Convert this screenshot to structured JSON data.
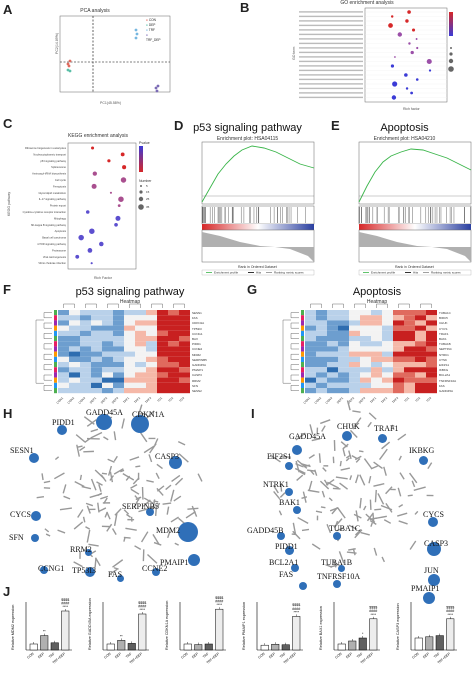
{
  "panels": {
    "A": {
      "label": "A",
      "title": "PCA analysis",
      "xlabel": "PC1(45.58%)",
      "ylabel": "PC2(14.89%)",
      "legend": [
        "CON",
        "DEP",
        "TRF",
        "TRF_DEP"
      ],
      "legend_colors": [
        "#e06a5e",
        "#5bbfa8",
        "#76b7e0",
        "#7b6bb5"
      ]
    },
    "B": {
      "label": "B",
      "title": "GO enrichment analysis",
      "xlabel": "Rich factor",
      "ylabel": "GO term"
    },
    "C": {
      "label": "C",
      "title": "KEGG enrichment analysis",
      "xlabel": "Rich Factor",
      "ylabel": "KEGG pathway",
      "pathways": [
        "Ribosome biogenesis in eukaryotes",
        "Nucleocytoplasmic transport",
        "p53 signaling pathway",
        "Spliceosome",
        "Aminoacyl-tRNA biosynthesis",
        "Cell cycle",
        "Ferroptosis",
        "Glycerolipid metabolism",
        "IL-17 signaling pathway",
        "Protein export",
        "Cytokine-cytokine receptor interaction",
        "Mitophagy",
        "NF-kappa B signaling pathway",
        "Apoptosis",
        "Basal cell carcinoma",
        "mTOR signaling pathway",
        "Proteasome",
        "Viral carcinogenesis",
        "Vibrio cholerae infection"
      ],
      "legend_pvalue": "Pvalue",
      "legend_number": "Number",
      "number_ticks": [
        "5",
        "15",
        "25",
        "35"
      ]
    },
    "D": {
      "label": "D",
      "big_title": "p53 signaling pathway",
      "plot_title": "Enrichment plot: HSA04115",
      "xlabel": "Rank in Ordered Dataset",
      "legend": [
        "Enrichment profile",
        "Hits",
        "Ranking metric scores"
      ]
    },
    "E": {
      "label": "E",
      "big_title": "Apoptosis",
      "plot_title": "Enrichment plot: HSA04210",
      "xlabel": "Rank in Ordered Dataset",
      "legend": [
        "Enrichment profile",
        "Hits",
        "Ranking metric scores"
      ]
    },
    "F": {
      "label": "F",
      "big_title": "p53 signaling pathway",
      "sub": "Heatmap",
      "genes": [
        "SESN1",
        "FAS",
        "CDKN1A",
        "TP53I3",
        "CCNG1",
        "BAX",
        "PIDD1",
        "CCNE2",
        "MDM2",
        "SERPINB5",
        "GADD45A",
        "PMAIP1",
        "CASP3",
        "RRM2",
        "SFN",
        "SESN2"
      ],
      "samples": [
        "CON1",
        "CON2",
        "CON3",
        "DEP1",
        "DEP2",
        "DEP3",
        "TRF1",
        "TRF2",
        "TRF3",
        "TD1",
        "TD2",
        "TD3"
      ]
    },
    "G": {
      "label": "G",
      "big_title": "Apoptosis",
      "sub": "Heatmap",
      "genes": [
        "TUBA1C",
        "BIRC5",
        "CHUK",
        "CYCS",
        "TRAF1",
        "BAK1",
        "TUBA1B",
        "SEPTIN4",
        "NTRK1",
        "CTSK",
        "EIF2S1",
        "IKBKG",
        "BCL2A1",
        "TNFRSF10A",
        "FAS",
        "GADD45A"
      ],
      "samples": [
        "CON1",
        "CON2",
        "CON3",
        "DEP1",
        "DEP2",
        "DEP3",
        "TRF1",
        "TRF2",
        "TRF3",
        "TD1",
        "TD2",
        "TD3"
      ]
    },
    "H": {
      "label": "H",
      "genes": [
        "PIDD1",
        "GADD45A",
        "CDKN1A",
        "SESN1",
        "CASP3",
        "CYCS",
        "SERPINB5",
        "MDM2",
        "SFN",
        "RRM2",
        "PMAIP1",
        "CCNG1",
        "TP53I3",
        "FAS",
        "CCNE2"
      ]
    },
    "I": {
      "label": "I",
      "genes": [
        "GADD45A",
        "CHUK",
        "TRAF1",
        "IKBKG",
        "EIF2S1",
        "NTRK1",
        "CYCS",
        "BAK1",
        "GADD45B",
        "CASP3",
        "TUBA1C",
        "PIDD1",
        "JUN",
        "BCL2A1",
        "TUBA1B",
        "FAS",
        "TNFRSF10A",
        "PMAIP1"
      ]
    },
    "J": {
      "label": "J",
      "charts": [
        {
          "ylabel": "Relative MDM2 expression",
          "values": [
            1,
            2.4,
            1.2,
            6.5
          ],
          "ymax": 8,
          "stars": [
            "",
            "**",
            "",
            "$$$$\n####\n****"
          ]
        },
        {
          "ylabel": "Relative GADD45A expression",
          "values": [
            1,
            1.6,
            1.1,
            6.0
          ],
          "ymax": 8,
          "stars": [
            "",
            "**",
            "",
            "$$$$\n####\n****"
          ]
        },
        {
          "ylabel": "Relative CDKN1A expression",
          "values": [
            1,
            0.9,
            1.0,
            6.8
          ],
          "ymax": 8,
          "stars": [
            "",
            "",
            "",
            "$$$$\n####\n****"
          ]
        },
        {
          "ylabel": "Relative PMAIP1 expression",
          "values": [
            1,
            1.2,
            1.1,
            7.0
          ],
          "ymax": 10,
          "stars": [
            "",
            "",
            "",
            "$$$$\n####\n****"
          ]
        },
        {
          "ylabel": "Relative BAX1 expression",
          "values": [
            1,
            1.5,
            2.0,
            5.2
          ],
          "ymax": 8,
          "stars": [
            "",
            "",
            "*",
            "$$$$\n####\n****"
          ]
        },
        {
          "ylabel": "Relative CASP3 expression",
          "values": [
            1,
            1.1,
            1.2,
            2.6
          ],
          "ymax": 4,
          "stars": [
            "",
            "",
            "",
            "$$$$\n####\n****"
          ]
        }
      ],
      "categories": [
        "CON",
        "DEP",
        "TRF",
        "TRF+DEP"
      ]
    }
  }
}
